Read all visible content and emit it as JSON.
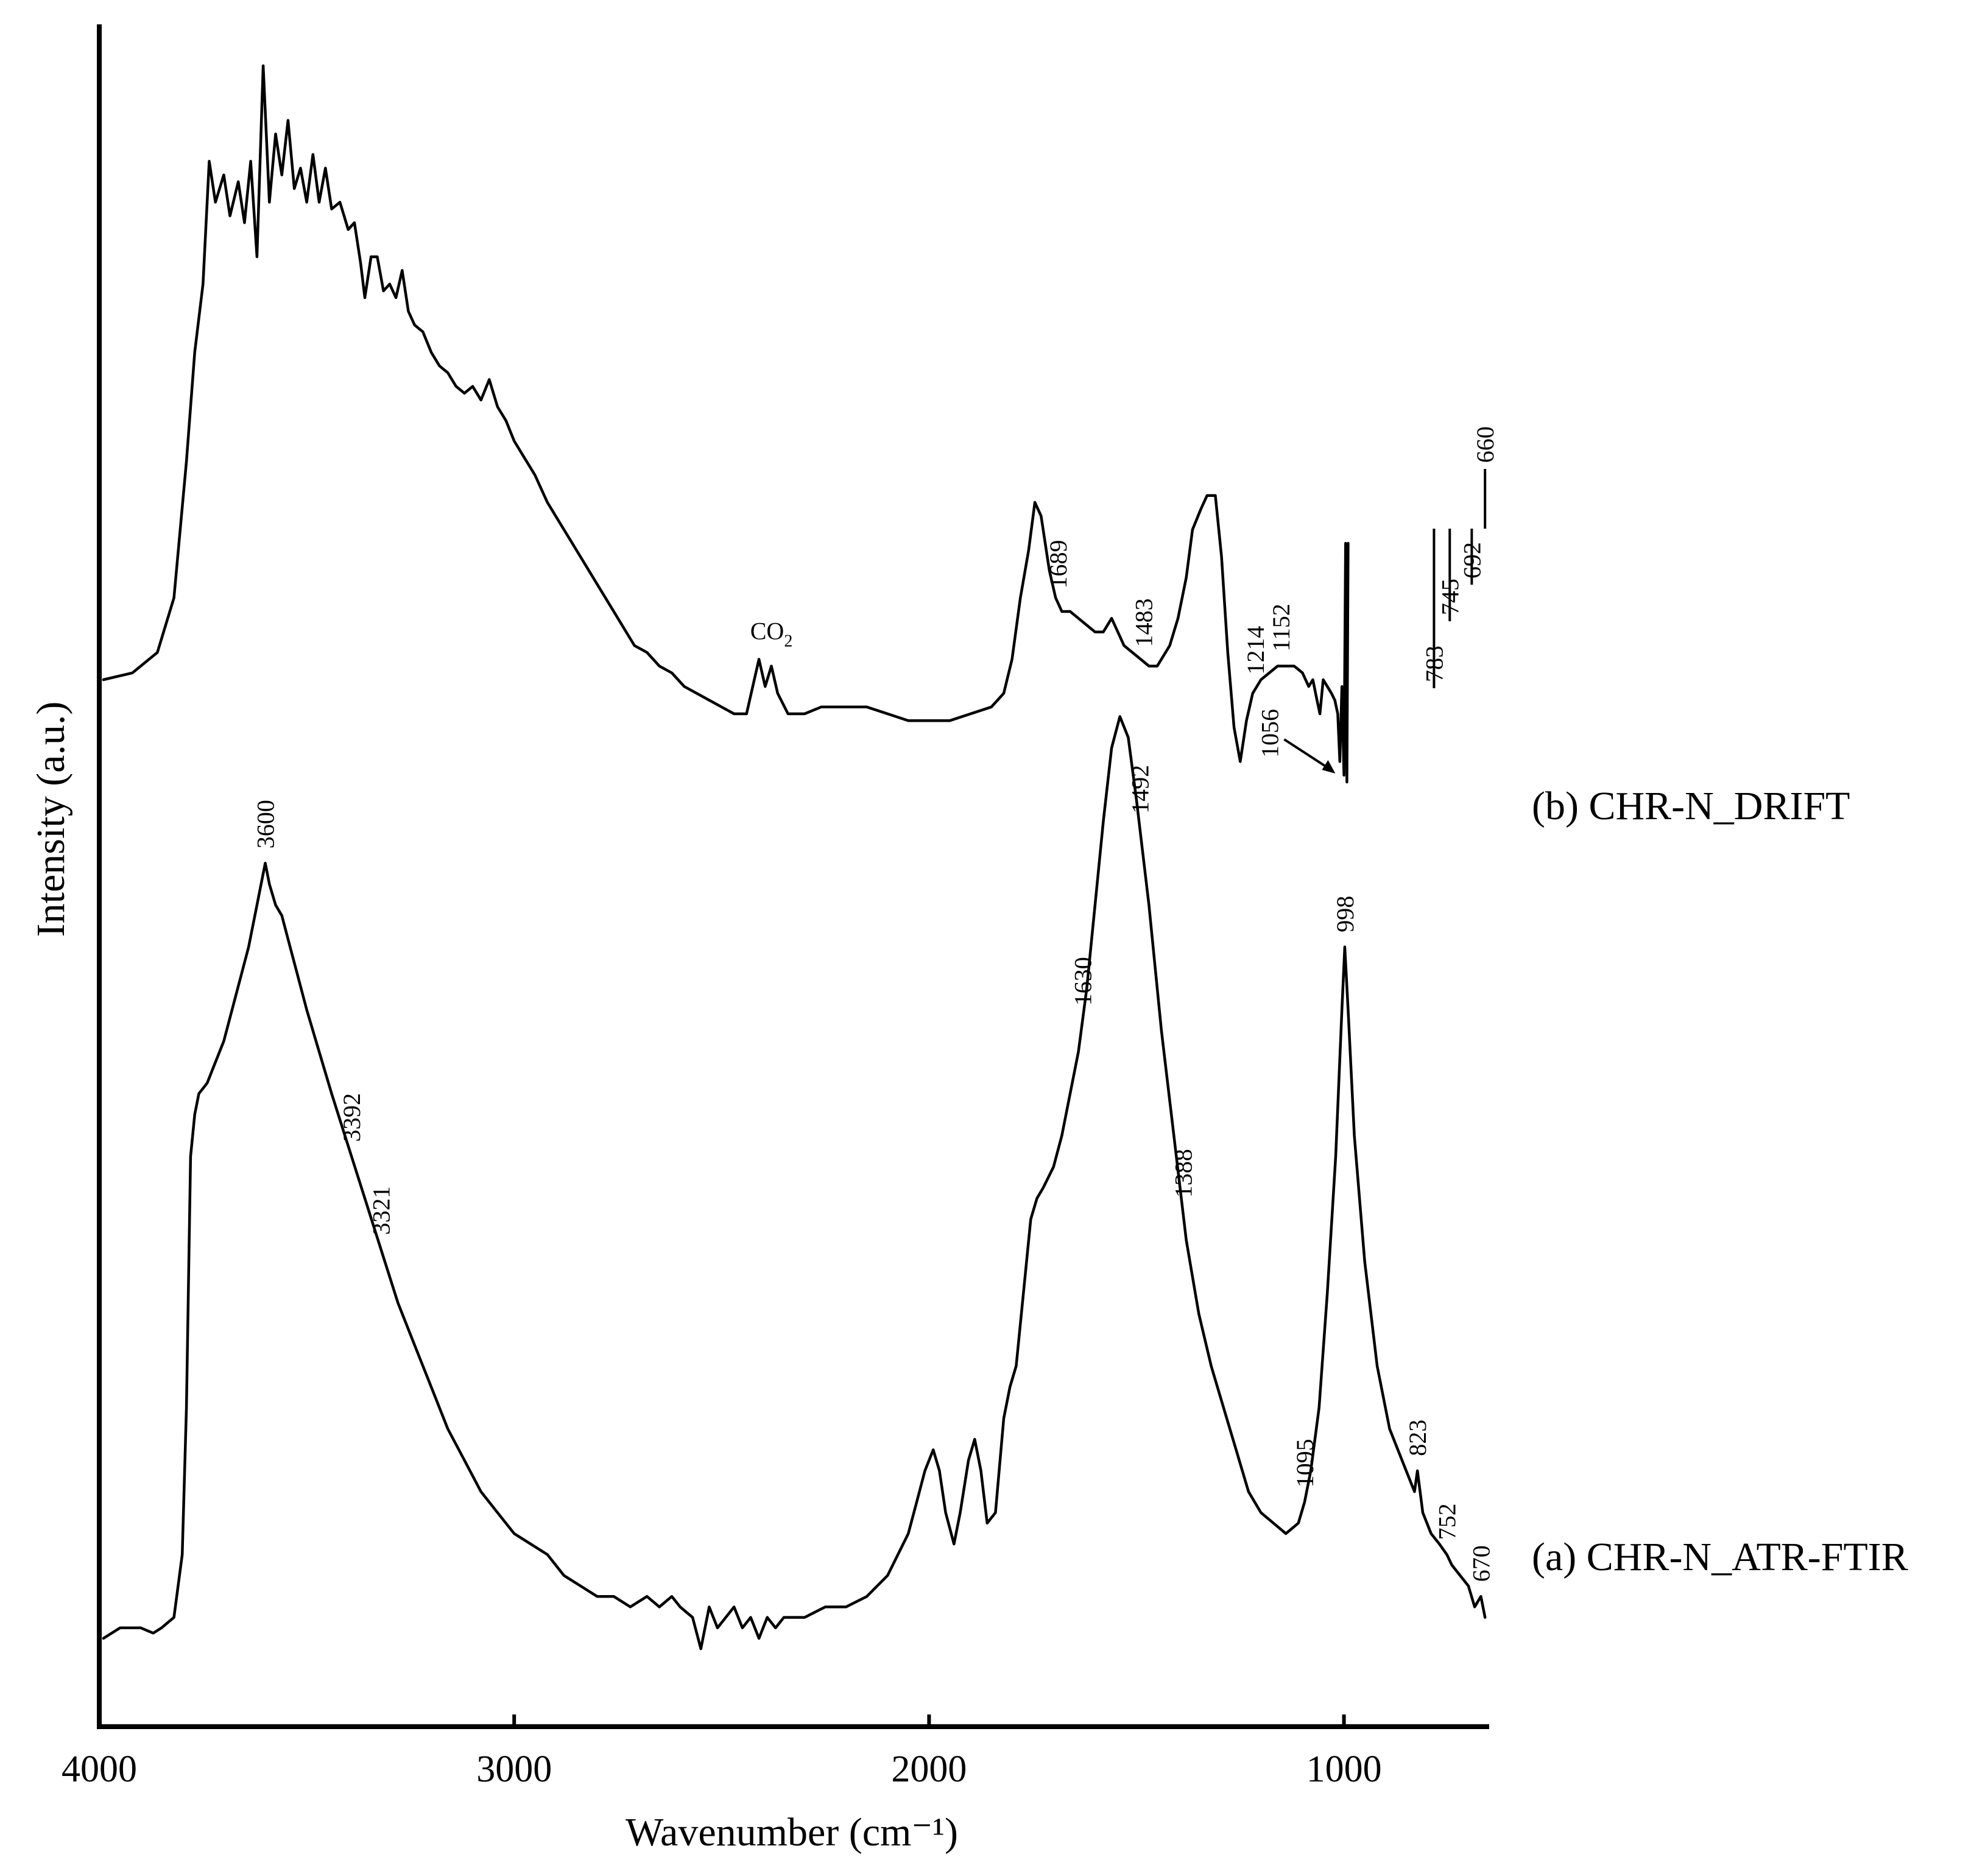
{
  "chart_data": {
    "type": "line",
    "xlabel": "Wavenumber (cm⁻¹)",
    "ylabel": "Intensity (a.u.)",
    "xlim": [
      4000,
      650
    ],
    "x_reversed": true,
    "x_ticks": [
      4000,
      3000,
      2000,
      1000
    ],
    "x_tick_labels": [
      "4000",
      "3000",
      "2000",
      "1000"
    ],
    "y_ticks": [],
    "grid": false,
    "legend": "none",
    "series": [
      {
        "name": "(b) CHR-N_DRIFT",
        "role": "upper",
        "points": [
          [
            3990,
            0.1
          ],
          [
            3920,
            0.11
          ],
          [
            3860,
            0.14
          ],
          [
            3820,
            0.22
          ],
          [
            3790,
            0.42
          ],
          [
            3770,
            0.58
          ],
          [
            3750,
            0.68
          ],
          [
            3735,
            0.86
          ],
          [
            3720,
            0.8
          ],
          [
            3700,
            0.84
          ],
          [
            3685,
            0.78
          ],
          [
            3665,
            0.83
          ],
          [
            3650,
            0.77
          ],
          [
            3635,
            0.86
          ],
          [
            3620,
            0.72
          ],
          [
            3605,
            1.0
          ],
          [
            3590,
            0.8
          ],
          [
            3575,
            0.9
          ],
          [
            3560,
            0.84
          ],
          [
            3545,
            0.92
          ],
          [
            3530,
            0.82
          ],
          [
            3515,
            0.85
          ],
          [
            3500,
            0.8
          ],
          [
            3485,
            0.87
          ],
          [
            3470,
            0.8
          ],
          [
            3455,
            0.85
          ],
          [
            3440,
            0.79
          ],
          [
            3420,
            0.8
          ],
          [
            3400,
            0.76
          ],
          [
            3385,
            0.77
          ],
          [
            3370,
            0.71
          ],
          [
            3360,
            0.66
          ],
          [
            3345,
            0.72
          ],
          [
            3330,
            0.72
          ],
          [
            3315,
            0.67
          ],
          [
            3300,
            0.68
          ],
          [
            3285,
            0.66
          ],
          [
            3270,
            0.7
          ],
          [
            3255,
            0.64
          ],
          [
            3240,
            0.62
          ],
          [
            3220,
            0.61
          ],
          [
            3200,
            0.58
          ],
          [
            3180,
            0.56
          ],
          [
            3160,
            0.55
          ],
          [
            3140,
            0.53
          ],
          [
            3120,
            0.52
          ],
          [
            3100,
            0.53
          ],
          [
            3080,
            0.51
          ],
          [
            3060,
            0.54
          ],
          [
            3040,
            0.5
          ],
          [
            3020,
            0.48
          ],
          [
            3000,
            0.45
          ],
          [
            2980,
            0.43
          ],
          [
            2950,
            0.4
          ],
          [
            2920,
            0.36
          ],
          [
            2890,
            0.33
          ],
          [
            2860,
            0.3
          ],
          [
            2830,
            0.27
          ],
          [
            2800,
            0.24
          ],
          [
            2770,
            0.21
          ],
          [
            2740,
            0.18
          ],
          [
            2710,
            0.15
          ],
          [
            2680,
            0.14
          ],
          [
            2650,
            0.12
          ],
          [
            2620,
            0.11
          ],
          [
            2590,
            0.09
          ],
          [
            2560,
            0.08
          ],
          [
            2530,
            0.07
          ],
          [
            2500,
            0.06
          ],
          [
            2470,
            0.05
          ],
          [
            2440,
            0.05
          ],
          [
            2410,
            0.13
          ],
          [
            2395,
            0.09
          ],
          [
            2380,
            0.12
          ],
          [
            2365,
            0.08
          ],
          [
            2340,
            0.05
          ],
          [
            2300,
            0.05
          ],
          [
            2260,
            0.06
          ],
          [
            2200,
            0.06
          ],
          [
            2150,
            0.06
          ],
          [
            2100,
            0.05
          ],
          [
            2050,
            0.04
          ],
          [
            2000,
            0.04
          ],
          [
            1950,
            0.04
          ],
          [
            1900,
            0.05
          ],
          [
            1850,
            0.06
          ],
          [
            1820,
            0.08
          ],
          [
            1800,
            0.13
          ],
          [
            1780,
            0.22
          ],
          [
            1760,
            0.29
          ],
          [
            1745,
            0.36
          ],
          [
            1730,
            0.34
          ],
          [
            1720,
            0.3
          ],
          [
            1710,
            0.26
          ],
          [
            1695,
            0.22
          ],
          [
            1680,
            0.2
          ],
          [
            1660,
            0.2
          ],
          [
            1640,
            0.19
          ],
          [
            1620,
            0.18
          ],
          [
            1600,
            0.17
          ],
          [
            1580,
            0.17
          ],
          [
            1560,
            0.19
          ],
          [
            1545,
            0.17
          ],
          [
            1530,
            0.15
          ],
          [
            1510,
            0.14
          ],
          [
            1490,
            0.13
          ],
          [
            1470,
            0.12
          ],
          [
            1450,
            0.12
          ],
          [
            1420,
            0.15
          ],
          [
            1400,
            0.19
          ],
          [
            1380,
            0.25
          ],
          [
            1365,
            0.32
          ],
          [
            1345,
            0.35
          ],
          [
            1330,
            0.37
          ],
          [
            1310,
            0.37
          ],
          [
            1295,
            0.28
          ],
          [
            1280,
            0.14
          ],
          [
            1265,
            0.03
          ],
          [
            1250,
            -0.02
          ],
          [
            1235,
            0.04
          ],
          [
            1220,
            0.08
          ],
          [
            1200,
            0.1
          ],
          [
            1180,
            0.11
          ],
          [
            1160,
            0.12
          ],
          [
            1140,
            0.12
          ],
          [
            1120,
            0.12
          ],
          [
            1100,
            0.11
          ],
          [
            1085,
            0.09
          ],
          [
            1075,
            0.1
          ],
          [
            1065,
            0.07
          ],
          [
            1058,
            0.05
          ],
          [
            1050,
            0.1
          ],
          [
            1040,
            0.09
          ],
          [
            1030,
            0.08
          ],
          [
            1022,
            0.07
          ],
          [
            1015,
            0.05
          ],
          [
            1010,
            -0.02
          ],
          [
            1005,
            0.09
          ],
          [
            1000,
            -0.04
          ],
          [
            996,
            0.3
          ],
          [
            993,
            -0.05
          ],
          [
            990,
            0.3
          ]
        ]
      },
      {
        "name": "(a) CHR-N_ATR-FTIR",
        "role": "lower",
        "points": [
          [
            3990,
            0.0
          ],
          [
            3950,
            0.01
          ],
          [
            3900,
            0.01
          ],
          [
            3870,
            0.005
          ],
          [
            3850,
            0.01
          ],
          [
            3820,
            0.02
          ],
          [
            3800,
            0.08
          ],
          [
            3790,
            0.22
          ],
          [
            3780,
            0.46
          ],
          [
            3770,
            0.5
          ],
          [
            3760,
            0.52
          ],
          [
            3740,
            0.53
          ],
          [
            3720,
            0.55
          ],
          [
            3700,
            0.57
          ],
          [
            3680,
            0.6
          ],
          [
            3660,
            0.63
          ],
          [
            3640,
            0.66
          ],
          [
            3620,
            0.7
          ],
          [
            3600,
            0.74
          ],
          [
            3590,
            0.72
          ],
          [
            3575,
            0.7
          ],
          [
            3560,
            0.69
          ],
          [
            3540,
            0.66
          ],
          [
            3520,
            0.63
          ],
          [
            3500,
            0.6
          ],
          [
            3470,
            0.56
          ],
          [
            3440,
            0.52
          ],
          [
            3400,
            0.47
          ],
          [
            3360,
            0.42
          ],
          [
            3320,
            0.37
          ],
          [
            3280,
            0.32
          ],
          [
            3240,
            0.28
          ],
          [
            3200,
            0.24
          ],
          [
            3160,
            0.2
          ],
          [
            3120,
            0.17
          ],
          [
            3080,
            0.14
          ],
          [
            3040,
            0.12
          ],
          [
            3000,
            0.1
          ],
          [
            2960,
            0.09
          ],
          [
            2920,
            0.08
          ],
          [
            2880,
            0.06
          ],
          [
            2840,
            0.05
          ],
          [
            2800,
            0.04
          ],
          [
            2760,
            0.04
          ],
          [
            2720,
            0.03
          ],
          [
            2680,
            0.04
          ],
          [
            2650,
            0.03
          ],
          [
            2620,
            0.04
          ],
          [
            2600,
            0.03
          ],
          [
            2570,
            0.02
          ],
          [
            2550,
            -0.01
          ],
          [
            2530,
            0.03
          ],
          [
            2510,
            0.01
          ],
          [
            2490,
            0.02
          ],
          [
            2470,
            0.03
          ],
          [
            2450,
            0.01
          ],
          [
            2430,
            0.02
          ],
          [
            2410,
            0.0
          ],
          [
            2390,
            0.02
          ],
          [
            2370,
            0.01
          ],
          [
            2350,
            0.02
          ],
          [
            2300,
            0.02
          ],
          [
            2250,
            0.03
          ],
          [
            2200,
            0.03
          ],
          [
            2150,
            0.04
          ],
          [
            2100,
            0.06
          ],
          [
            2050,
            0.1
          ],
          [
            2030,
            0.13
          ],
          [
            2010,
            0.16
          ],
          [
            1990,
            0.18
          ],
          [
            1975,
            0.16
          ],
          [
            1960,
            0.12
          ],
          [
            1940,
            0.09
          ],
          [
            1925,
            0.12
          ],
          [
            1905,
            0.17
          ],
          [
            1890,
            0.19
          ],
          [
            1875,
            0.16
          ],
          [
            1860,
            0.11
          ],
          [
            1840,
            0.12
          ],
          [
            1820,
            0.21
          ],
          [
            1805,
            0.24
          ],
          [
            1790,
            0.26
          ],
          [
            1770,
            0.34
          ],
          [
            1755,
            0.4
          ],
          [
            1740,
            0.42
          ],
          [
            1725,
            0.43
          ],
          [
            1700,
            0.45
          ],
          [
            1680,
            0.48
          ],
          [
            1660,
            0.52
          ],
          [
            1640,
            0.56
          ],
          [
            1620,
            0.62
          ],
          [
            1600,
            0.7
          ],
          [
            1580,
            0.78
          ],
          [
            1560,
            0.85
          ],
          [
            1540,
            0.88
          ],
          [
            1520,
            0.86
          ],
          [
            1500,
            0.8
          ],
          [
            1470,
            0.7
          ],
          [
            1440,
            0.58
          ],
          [
            1410,
            0.48
          ],
          [
            1380,
            0.38
          ],
          [
            1350,
            0.31
          ],
          [
            1320,
            0.26
          ],
          [
            1290,
            0.22
          ],
          [
            1260,
            0.18
          ],
          [
            1230,
            0.14
          ],
          [
            1200,
            0.12
          ],
          [
            1170,
            0.11
          ],
          [
            1140,
            0.1
          ],
          [
            1110,
            0.11
          ],
          [
            1095,
            0.13
          ],
          [
            1080,
            0.16
          ],
          [
            1060,
            0.22
          ],
          [
            1040,
            0.33
          ],
          [
            1020,
            0.46
          ],
          [
            1005,
            0.6
          ],
          [
            998,
            0.66
          ],
          [
            990,
            0.6
          ],
          [
            975,
            0.48
          ],
          [
            950,
            0.36
          ],
          [
            920,
            0.26
          ],
          [
            890,
            0.2
          ],
          [
            860,
            0.17
          ],
          [
            830,
            0.14
          ],
          [
            823,
            0.16
          ],
          [
            810,
            0.12
          ],
          [
            790,
            0.1
          ],
          [
            770,
            0.09
          ],
          [
            752,
            0.08
          ],
          [
            740,
            0.07
          ],
          [
            720,
            0.06
          ],
          [
            700,
            0.05
          ],
          [
            685,
            0.03
          ],
          [
            670,
            0.04
          ],
          [
            660,
            0.02
          ]
        ]
      }
    ],
    "annotations": [
      {
        "text": "CO",
        "subscript": "2",
        "x": 2380,
        "series": "upper"
      },
      {
        "text": "1689",
        "x": 1689,
        "series": "upper"
      },
      {
        "text": "1483",
        "x": 1483,
        "series": "upper"
      },
      {
        "text": "1214",
        "x": 1214,
        "series": "upper"
      },
      {
        "text": "1152",
        "x": 1152,
        "series": "upper"
      },
      {
        "text": "1056",
        "x": 1056,
        "series": "upper"
      },
      {
        "text": "783",
        "x": 783,
        "series": "upper"
      },
      {
        "text": "745",
        "x": 745,
        "series": "upper"
      },
      {
        "text": "692",
        "x": 692,
        "series": "upper"
      },
      {
        "text": "660",
        "x": 660,
        "series": "upper"
      },
      {
        "text": "3392",
        "x": 3392,
        "series": "lower"
      },
      {
        "text": "3321",
        "x": 3321,
        "series": "lower"
      },
      {
        "text": "3600",
        "x": 3600,
        "series": "lower"
      },
      {
        "text": "1630",
        "x": 1630,
        "series": "lower"
      },
      {
        "text": "1492",
        "x": 1492,
        "series": "lower"
      },
      {
        "text": "1388",
        "x": 1388,
        "series": "lower"
      },
      {
        "text": "1095",
        "x": 1095,
        "series": "lower"
      },
      {
        "text": "998",
        "x": 998,
        "series": "lower"
      },
      {
        "text": "823",
        "x": 823,
        "series": "lower"
      },
      {
        "text": "752",
        "x": 752,
        "series": "lower"
      },
      {
        "text": "670",
        "x": 670,
        "series": "lower"
      }
    ]
  }
}
